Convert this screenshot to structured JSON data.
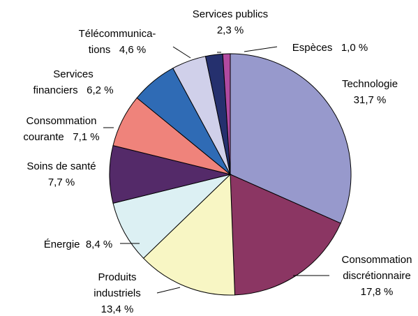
{
  "chart_data": {
    "type": "pie",
    "start_angle_deg": 0,
    "direction": "clockwise",
    "slices": [
      {
        "name": "Technologie",
        "value": 31.7,
        "value_label": "31,7 %",
        "label_lines": [
          "Technologie",
          "31,7 %"
        ],
        "color": "#9799cc"
      },
      {
        "name": "Consommation discrétionnaire",
        "value": 17.8,
        "value_label": "17,8 %",
        "label_lines": [
          "Consommation",
          "discrétionnaire",
          "17,8 %"
        ],
        "color": "#8b3663"
      },
      {
        "name": "Produits industriels",
        "value": 13.4,
        "value_label": "13,4 %",
        "label_lines": [
          "Produits",
          "industriels",
          "13,4 %"
        ],
        "color": "#f8f6c4"
      },
      {
        "name": "Énergie",
        "value": 8.4,
        "value_label": "8,4 %",
        "label_lines": [
          "Énergie  8,4 %"
        ],
        "color": "#dcf0f3"
      },
      {
        "name": "Soins de santé",
        "value": 7.7,
        "value_label": "7,7 %",
        "label_lines": [
          "Soins de santé",
          "7,7 %"
        ],
        "color": "#542a69"
      },
      {
        "name": "Consommation courante",
        "value": 7.1,
        "value_label": "7,1 %",
        "label_lines": [
          "Consommation",
          "courante   7,1 %"
        ],
        "color": "#ef837b"
      },
      {
        "name": "Services financiers",
        "value": 6.2,
        "value_label": "6,2 %",
        "label_lines": [
          "Services",
          "financiers   6,2 %"
        ],
        "color": "#2f6bb5"
      },
      {
        "name": "Télécommunications",
        "value": 4.6,
        "value_label": "4,6 %",
        "label_lines": [
          "Télécommunica-",
          "tions   4,6 %"
        ],
        "color": "#d0d0ea"
      },
      {
        "name": "Services publics",
        "value": 2.3,
        "value_label": "2,3 %",
        "label_lines": [
          "Services publics",
          "2,3 %"
        ],
        "color": "#25306e"
      },
      {
        "name": "Espèces",
        "value": 1.0,
        "value_label": "1,0 %",
        "label_lines": [
          "Espèces   1,0 %"
        ],
        "color": "#b04aa0"
      }
    ]
  }
}
